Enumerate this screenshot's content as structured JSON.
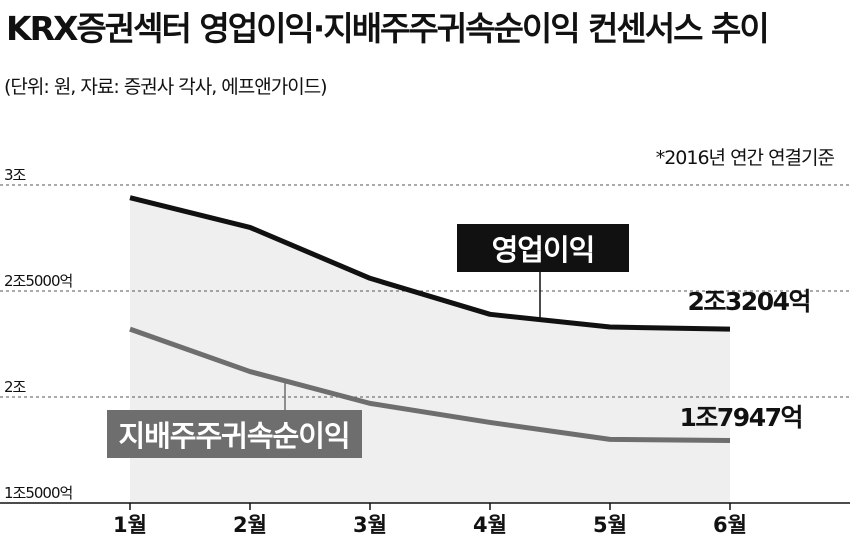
{
  "header": {
    "title": "KRX증권섹터 영업이익·지배주주귀속순이익 컨센서스 추이",
    "subtitle": "(단위: 원, 자료: 증권사 각사, 에프앤가이드)"
  },
  "chart_data": {
    "type": "line",
    "note": "*2016년 연간 연결기준",
    "categories": [
      "1월",
      "2월",
      "3월",
      "4월",
      "5월",
      "6월"
    ],
    "y_ticks": [
      {
        "value": 3.0,
        "label": "3조"
      },
      {
        "value": 2.5,
        "label": "2조5000억"
      },
      {
        "value": 2.0,
        "label": "2조"
      },
      {
        "value": 1.5,
        "label": "1조5000억"
      }
    ],
    "ylim": [
      1.5,
      3.0
    ],
    "grid": "dashed horizontal",
    "series": [
      {
        "name": "영업이익",
        "color": "#111111",
        "values": [
          2.94,
          2.8,
          2.56,
          2.39,
          2.33,
          2.3204
        ],
        "end_label": "2조3204억"
      },
      {
        "name": "지배주주귀속순이익",
        "color": "#6e6e6e",
        "values": [
          2.32,
          2.12,
          1.97,
          1.88,
          1.8,
          1.7947
        ],
        "end_label": "1조7947억"
      }
    ]
  }
}
